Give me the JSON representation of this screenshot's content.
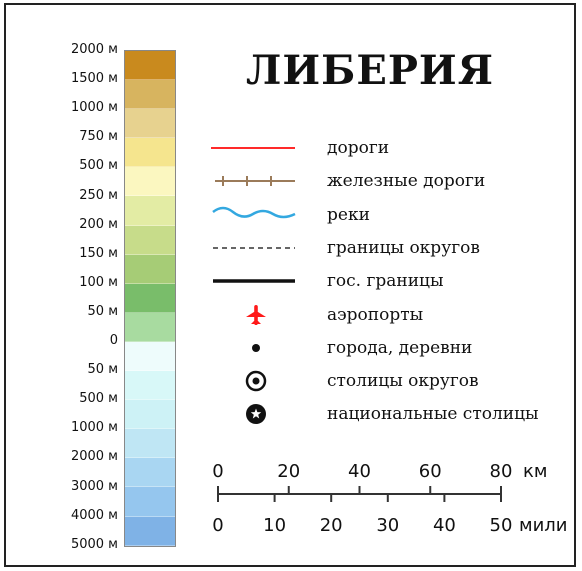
{
  "title": "ЛИБЕРИЯ",
  "elevation_scale": {
    "labels": [
      "2000 м",
      "1500 м",
      "1000 м",
      "750 м",
      "500 м",
      "250 м",
      "200 м",
      "150 м",
      "100 м",
      "50 м",
      "0",
      "50 м",
      "500 м",
      "1000 м",
      "2000 м",
      "3000 м",
      "4000 м",
      "5000 м"
    ],
    "bands": [
      {
        "color": "#c98a1e"
      },
      {
        "color": "#d7b45f"
      },
      {
        "color": "#e7d28f"
      },
      {
        "color": "#f5e58e"
      },
      {
        "color": "#fbf7c0"
      },
      {
        "color": "#e3eca4"
      },
      {
        "color": "#c7dc8a"
      },
      {
        "color": "#a6cc76"
      },
      {
        "color": "#79bd6a"
      },
      {
        "color": "#a8dba0"
      },
      {
        "color": "#eefcfc"
      },
      {
        "color": "#d8f8f8"
      },
      {
        "color": "#cdf2f6"
      },
      {
        "color": "#bfe6f4"
      },
      {
        "color": "#a9d6f2"
      },
      {
        "color": "#95c6ee"
      },
      {
        "color": "#7fb2e6"
      }
    ]
  },
  "legend": [
    {
      "id": "roads",
      "label": "дороги",
      "icon": "road-line-icon",
      "color": "#ff2a2a"
    },
    {
      "id": "railways",
      "label": "железные дороги",
      "icon": "railway-line-icon",
      "color": "#9b7b5a"
    },
    {
      "id": "rivers",
      "label": "реки",
      "icon": "river-wave-icon",
      "color": "#33a8e0"
    },
    {
      "id": "district-borders",
      "label": "границы округов",
      "icon": "dashed-border-icon",
      "color": "#333333"
    },
    {
      "id": "state-borders",
      "label": "гос. границы",
      "icon": "solid-border-icon",
      "color": "#111111"
    },
    {
      "id": "airports",
      "label": "аэропорты",
      "icon": "airplane-icon",
      "color": "#ff1a1a"
    },
    {
      "id": "towns",
      "label": "города, деревни",
      "icon": "dot-icon",
      "color": "#111111"
    },
    {
      "id": "district-capitals",
      "label": "столицы округов",
      "icon": "circled-dot-icon",
      "color": "#111111"
    },
    {
      "id": "national-capital",
      "label": "национальные столицы",
      "icon": "star-in-circle-icon",
      "color": "#111111"
    }
  ],
  "scale_bar": {
    "km": {
      "ticks": [
        "0",
        "20",
        "40",
        "60",
        "80"
      ],
      "unit": "км"
    },
    "miles": {
      "ticks": [
        "0",
        "10",
        "20",
        "30",
        "40",
        "50"
      ],
      "unit": "мили"
    }
  }
}
